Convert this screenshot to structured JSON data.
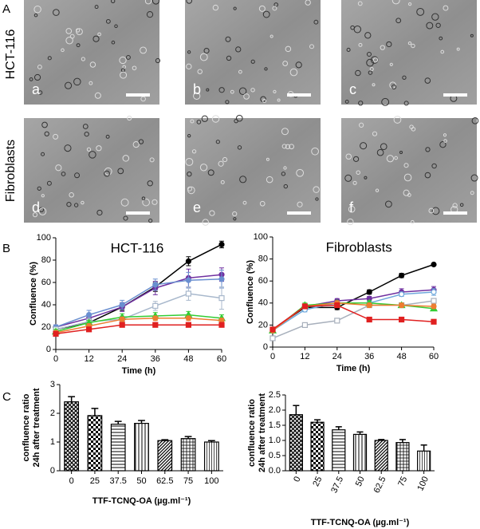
{
  "panel_labels": [
    "A",
    "B",
    "C"
  ],
  "row_labels": [
    "HCT-116",
    "Fibroblasts"
  ],
  "image_labels": [
    "a",
    "b",
    "c",
    "d",
    "e",
    "f"
  ],
  "chart_data": [
    {
      "type": "line",
      "title": "HCT-116",
      "xlabel": "Time (h)",
      "ylabel": "Confluence (%)",
      "x": [
        0,
        12,
        24,
        36,
        48,
        60
      ],
      "xlim": [
        0,
        60
      ],
      "xticks": [
        0,
        12,
        24,
        36,
        48,
        60
      ],
      "ylim": [
        0,
        100
      ],
      "yticks": [
        0,
        20,
        40,
        60,
        80,
        100
      ],
      "series": [
        {
          "color": "#000000",
          "marker": "circle",
          "values": [
            18,
            24,
            38,
            56,
            79,
            94
          ],
          "errors": [
            2,
            3,
            3,
            4,
            4,
            3
          ]
        },
        {
          "color": "#7030a0",
          "marker": "circle",
          "values": [
            20,
            28,
            38,
            55,
            64,
            67
          ],
          "errors": [
            2,
            3,
            4,
            6,
            8,
            6
          ]
        },
        {
          "color": "#6a8fd0",
          "marker": "circle",
          "values": [
            20,
            31,
            40,
            58,
            62,
            63
          ],
          "errors": [
            2,
            4,
            4,
            5,
            7,
            8
          ]
        },
        {
          "color": "#a8b8cc",
          "marker": "square",
          "values": [
            18,
            25,
            27,
            39,
            50,
            46
          ],
          "errors": [
            2,
            3,
            3,
            4,
            6,
            10
          ]
        },
        {
          "color": "#33cc33",
          "marker": "triangle",
          "values": [
            16,
            24,
            29,
            30,
            31,
            28
          ],
          "errors": [
            2,
            2,
            3,
            3,
            3,
            3
          ]
        },
        {
          "color": "#ed7d31",
          "marker": "circle",
          "values": [
            15,
            21,
            27,
            28,
            28,
            26
          ],
          "errors": [
            2,
            2,
            2,
            2,
            2,
            2
          ]
        },
        {
          "color": "#e02020",
          "marker": "square",
          "values": [
            14,
            18,
            22,
            22,
            22,
            22
          ],
          "errors": [
            1,
            2,
            2,
            2,
            2,
            2
          ]
        }
      ]
    },
    {
      "type": "line",
      "title": "Fibroblasts",
      "xlabel": "Time (h)",
      "ylabel": "Confluence (%)",
      "x": [
        0,
        12,
        24,
        36,
        48,
        60
      ],
      "xlim": [
        0,
        60
      ],
      "xticks": [
        0,
        12,
        24,
        36,
        48,
        60
      ],
      "ylim": [
        0,
        100
      ],
      "yticks": [
        0,
        20,
        40,
        60,
        80,
        100
      ],
      "series": [
        {
          "color": "#000000",
          "marker": "circle",
          "values": [
            16,
            36,
            36,
            50,
            65,
            75
          ],
          "errors": [
            1,
            2,
            2,
            2,
            2,
            1
          ]
        },
        {
          "color": "#7030a0",
          "marker": "circle",
          "values": [
            16,
            37,
            42,
            44,
            50,
            52
          ],
          "errors": [
            1,
            2,
            2,
            2,
            3,
            3
          ]
        },
        {
          "color": "#6fa8dc",
          "marker": "circle",
          "values": [
            15,
            34,
            40,
            40,
            48,
            50
          ],
          "errors": [
            1,
            2,
            2,
            2,
            2,
            3
          ]
        },
        {
          "color": "#a8b0bc",
          "marker": "square",
          "values": [
            8,
            20,
            24,
            38,
            38,
            42
          ],
          "errors": [
            1,
            1,
            2,
            2,
            2,
            2
          ]
        },
        {
          "color": "#33cc33",
          "marker": "triangle",
          "values": [
            15,
            38,
            40,
            40,
            38,
            35
          ],
          "errors": [
            1,
            2,
            2,
            2,
            2,
            2
          ]
        },
        {
          "color": "#ed7d31",
          "marker": "circle",
          "values": [
            15,
            37,
            40,
            38,
            38,
            37
          ],
          "errors": [
            1,
            2,
            2,
            2,
            2,
            2
          ]
        },
        {
          "color": "#e02020",
          "marker": "square",
          "values": [
            16,
            37,
            38,
            25,
            25,
            23
          ],
          "errors": [
            1,
            2,
            2,
            1,
            1,
            1
          ]
        }
      ]
    },
    {
      "type": "bar",
      "xlabel": "TTF-TCNQ-OA (µg.ml⁻¹)",
      "ylabel": [
        "confluence ratio",
        "24h after treatment"
      ],
      "categories": [
        "0",
        "25",
        "37.5",
        "50",
        "62.5",
        "75",
        "100"
      ],
      "values": [
        2.4,
        1.92,
        1.62,
        1.65,
        1.05,
        1.12,
        1.0
      ],
      "errors": [
        0.18,
        0.25,
        0.1,
        0.1,
        0.03,
        0.07,
        0.05
      ],
      "patterns": [
        "crosshatch",
        "checker",
        "hlines",
        "vlines",
        "diag",
        "grid",
        "vfine"
      ],
      "ylim": [
        0,
        3
      ],
      "yticks": [
        0,
        1,
        2,
        3
      ]
    },
    {
      "type": "bar",
      "xlabel": "TTF-TCNQ-OA (µg.ml⁻¹)",
      "ylabel": [
        "confluence ratio",
        "24h after treatment"
      ],
      "categories": [
        "0",
        "25",
        "37.5",
        "50",
        "62.5",
        "75",
        "100"
      ],
      "values": [
        1.85,
        1.6,
        1.35,
        1.2,
        1.0,
        0.93,
        0.65
      ],
      "errors": [
        0.3,
        0.08,
        0.1,
        0.08,
        0.03,
        0.1,
        0.2
      ],
      "patterns": [
        "crosshatch",
        "checker",
        "hlines",
        "vlines",
        "diag",
        "grid",
        "vfine"
      ],
      "ylim": [
        0,
        2.5
      ],
      "xlabel_rotated": true,
      "yticks": [
        {
          "value": 0,
          "label": "0.0"
        },
        0.5,
        {
          "value": 1,
          "label": "1.0"
        },
        1.5,
        {
          "value": 2,
          "label": "2.0"
        },
        2.5
      ]
    }
  ]
}
